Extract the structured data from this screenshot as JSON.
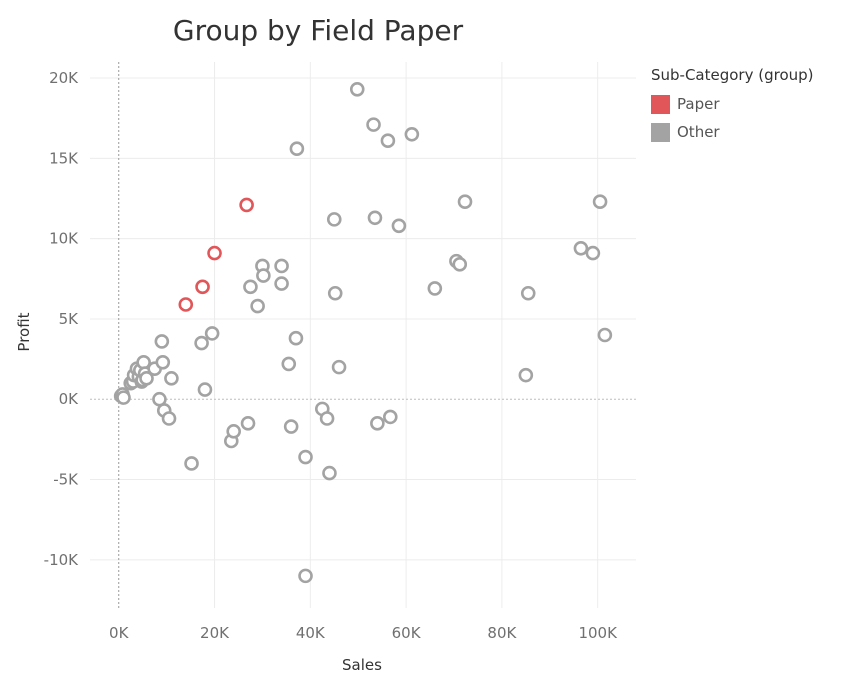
{
  "chart_data": {
    "type": "scatter",
    "title": "Group by Field Paper",
    "xlabel": "Sales",
    "ylabel": "Profit",
    "xlim": [
      -6000,
      108000
    ],
    "ylim": [
      -13000,
      21000
    ],
    "x_ticks": [
      0,
      20000,
      40000,
      60000,
      80000,
      100000
    ],
    "x_tick_labels": [
      "0K",
      "20K",
      "40K",
      "60K",
      "80K",
      "100K"
    ],
    "y_ticks": [
      -10000,
      -5000,
      0,
      5000,
      10000,
      15000,
      20000
    ],
    "y_tick_labels": [
      "-10K",
      "-5K",
      "0K",
      "5K",
      "10K",
      "15K",
      "20K"
    ],
    "grid": true,
    "legend": {
      "title": "Sub-Category (group)",
      "placement": "top-right",
      "items": [
        {
          "label": "Paper",
          "color": "#e15759"
        },
        {
          "label": "Other",
          "color": "#a3a3a3"
        }
      ]
    },
    "series": [
      {
        "name": "Paper",
        "color": "#e15759",
        "points": [
          [
            14000,
            5900
          ],
          [
            17500,
            7000
          ],
          [
            20000,
            9100
          ],
          [
            26700,
            12100
          ]
        ]
      },
      {
        "name": "Other",
        "color": "#a3a3a3",
        "points": [
          [
            500,
            200
          ],
          [
            800,
            300
          ],
          [
            1000,
            100
          ],
          [
            2500,
            1000
          ],
          [
            3000,
            1100
          ],
          [
            3200,
            1500
          ],
          [
            3800,
            1900
          ],
          [
            4200,
            1400
          ],
          [
            4500,
            1800
          ],
          [
            4800,
            1100
          ],
          [
            5000,
            1200
          ],
          [
            5200,
            2300
          ],
          [
            5500,
            1600
          ],
          [
            5800,
            1300
          ],
          [
            7500,
            1900
          ],
          [
            8500,
            0
          ],
          [
            9000,
            3600
          ],
          [
            9200,
            2300
          ],
          [
            9500,
            -700
          ],
          [
            10500,
            -1200
          ],
          [
            11000,
            1300
          ],
          [
            15200,
            -4000
          ],
          [
            17300,
            3500
          ],
          [
            18000,
            600
          ],
          [
            19500,
            4100
          ],
          [
            23500,
            -2600
          ],
          [
            24000,
            -2000
          ],
          [
            27000,
            -1500
          ],
          [
            27500,
            7000
          ],
          [
            29000,
            5800
          ],
          [
            30000,
            8300
          ],
          [
            30200,
            7700
          ],
          [
            34000,
            8300
          ],
          [
            34000,
            7200
          ],
          [
            35500,
            2200
          ],
          [
            36000,
            -1700
          ],
          [
            37000,
            3800
          ],
          [
            37200,
            15600
          ],
          [
            39000,
            -11000
          ],
          [
            39000,
            -3600
          ],
          [
            42500,
            -600
          ],
          [
            43500,
            -1200
          ],
          [
            44000,
            -4600
          ],
          [
            45000,
            11200
          ],
          [
            45200,
            6600
          ],
          [
            46000,
            2000
          ],
          [
            49800,
            19300
          ],
          [
            53200,
            17100
          ],
          [
            53500,
            11300
          ],
          [
            54000,
            -1500
          ],
          [
            56200,
            16100
          ],
          [
            56700,
            -1100
          ],
          [
            58500,
            10800
          ],
          [
            61200,
            16500
          ],
          [
            66000,
            6900
          ],
          [
            70500,
            8600
          ],
          [
            71200,
            8400
          ],
          [
            72300,
            12300
          ],
          [
            85000,
            1500
          ],
          [
            85500,
            6600
          ],
          [
            96500,
            9400
          ],
          [
            99000,
            9100
          ],
          [
            100500,
            12300
          ],
          [
            101500,
            4000
          ]
        ]
      }
    ]
  }
}
